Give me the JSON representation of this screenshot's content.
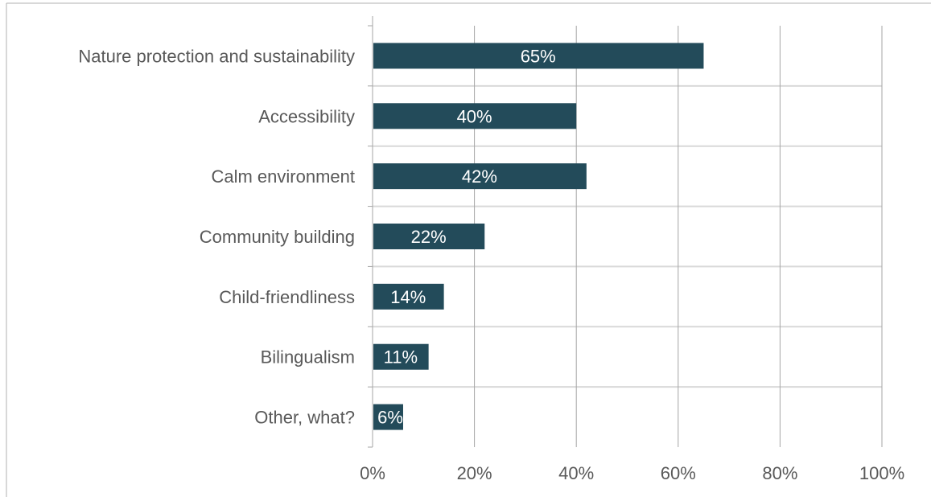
{
  "chart_data": {
    "type": "bar",
    "orientation": "horizontal",
    "title": "",
    "xlabel": "",
    "ylabel": "",
    "categories": [
      "Nature protection and sustainability",
      "Accessibility",
      "Calm environment",
      "Community building",
      "Child-friendliness",
      "Bilingualism",
      "Other, what?"
    ],
    "values": [
      65,
      40,
      42,
      22,
      14,
      11,
      6
    ],
    "data_labels": [
      "65%",
      "40%",
      "42%",
      "22%",
      "14%",
      "11%",
      "6%"
    ],
    "xlim": [
      0,
      100
    ],
    "x_ticks": [
      0,
      20,
      40,
      60,
      80,
      100
    ],
    "x_tick_labels": [
      "0%",
      "20%",
      "40%",
      "60%",
      "80%",
      "100%"
    ],
    "grid": true,
    "legend": "none",
    "bar_color": "#234B5A",
    "gridline_color": "#d9d9d9",
    "text_color": "#595959"
  }
}
